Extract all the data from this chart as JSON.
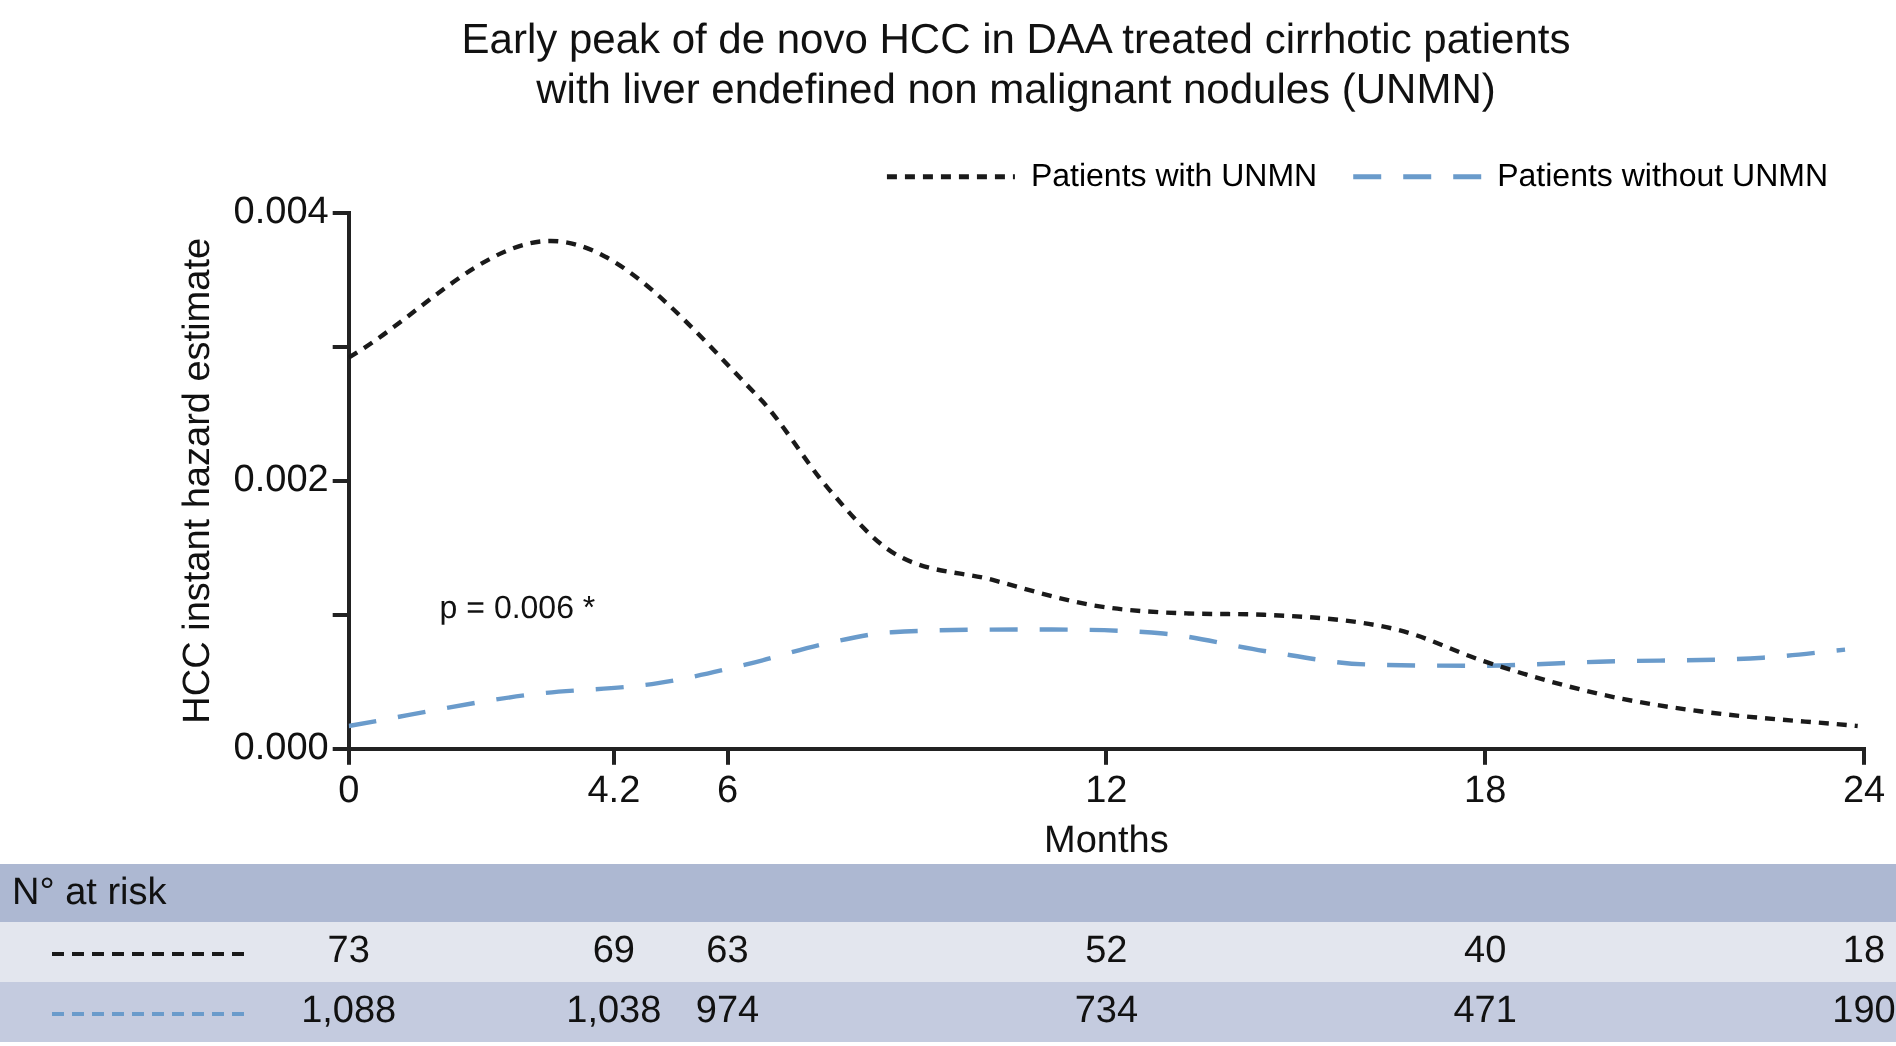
{
  "chart_data": {
    "type": "line",
    "title": "Early peak of de novo HCC in DAA treated cirrhotic patients\nwith liver endefined non malignant nodules (UNMN)",
    "xlabel": "Months",
    "ylabel": "HCC instant hazard estimate",
    "xlim": [
      0,
      24
    ],
    "xticks": [
      0,
      4.2,
      6,
      12,
      18,
      24
    ],
    "ylim": [
      0,
      0.004
    ],
    "yticks": [
      {
        "value": 0,
        "label": "0.000"
      },
      {
        "value": 0.001,
        "label": null
      },
      0.002,
      {
        "value": 0.003,
        "label": null
      },
      0.004
    ],
    "grid": false,
    "legend": "top right",
    "marker": "none",
    "series": [
      {
        "name": "Patients with UNMN",
        "color": "#1a1a1a",
        "line_style": "dotted",
        "x": [
          0,
          3.2,
          6.5,
          7.6,
          8.6,
          10.2,
          11.8,
          13.3,
          14.5,
          16.6,
          18.0,
          19.8,
          21.4,
          23.9
        ],
        "values": [
          0.00292,
          0.00379,
          0.00262,
          0.00194,
          0.00147,
          0.00126,
          0.00107,
          0.00101,
          0.001,
          0.00089,
          0.00065,
          0.00041,
          0.00028,
          0.00017
        ]
      },
      {
        "name": "Patients without UNMN",
        "color": "#6a9bcb",
        "line_style": "dashed",
        "x": [
          0,
          2.8,
          4.9,
          6.3,
          7.6,
          8.6,
          10.8,
          12.9,
          14.5,
          16.1,
          17.9,
          19.8,
          22.4,
          23.7
        ],
        "values": [
          0.00017,
          0.0004,
          0.00049,
          0.00063,
          0.00079,
          0.00087,
          0.00089,
          0.00086,
          0.00073,
          0.00063,
          0.00062,
          0.00065,
          0.00068,
          0.00074
        ]
      }
    ],
    "annotations": [
      "p = 0.006 *",
      "N° at risk",
      "73",
      "69",
      "63",
      "52",
      "40",
      "18",
      "1,088",
      "1,038",
      "974",
      "734",
      "471",
      "190"
    ]
  }
}
